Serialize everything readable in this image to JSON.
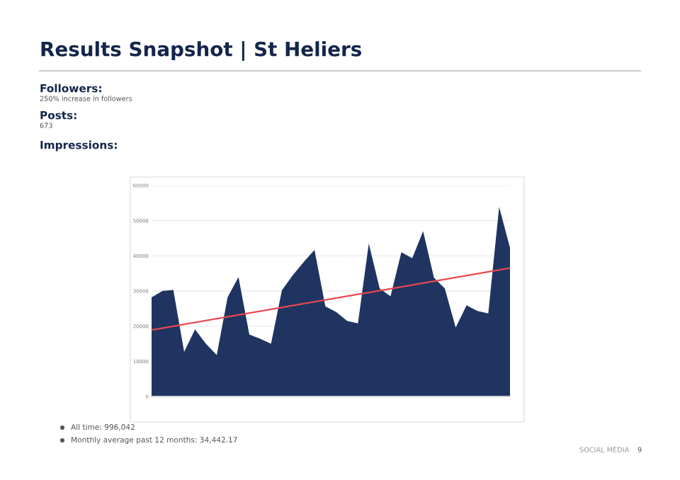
{
  "chart_data": {
    "type": "area",
    "title": "Results Snapshot | St Heliers",
    "annotations": [
      "Followers:",
      "250% increase in followers",
      "Posts:",
      "673",
      "Impressions:",
      "All time: 996,042",
      "Monthly average past 12 months: 34,442.17",
      "SOCIAL MEDIA",
      "9"
    ],
    "categories": [
      null,
      null,
      null,
      null,
      null,
      null,
      null,
      null,
      null,
      null,
      null,
      null,
      null,
      null,
      null,
      null,
      null,
      null,
      null,
      null,
      null,
      null,
      null,
      null,
      null,
      null,
      null,
      null,
      null,
      null,
      null,
      null,
      null,
      null
    ],
    "series": [
      {
        "color": "#1f3461",
        "values": [
          28200,
          30000,
          30300,
          12700,
          19100,
          15000,
          11800,
          28200,
          34000,
          17600,
          16400,
          15000,
          30200,
          34500,
          38200,
          41700,
          25600,
          24000,
          21500,
          20800,
          43500,
          30700,
          28500,
          41000,
          39300,
          47000,
          33800,
          30700,
          19600,
          25900,
          24300,
          23600,
          53900,
          42300
        ]
      },
      {
        "type": "line",
        "color": "#e8474f",
        "values": [
          18900,
          null,
          null,
          null,
          null,
          null,
          null,
          null,
          null,
          null,
          null,
          null,
          null,
          null,
          null,
          null,
          null,
          null,
          null,
          null,
          null,
          null,
          null,
          null,
          null,
          null,
          null,
          null,
          null,
          null,
          null,
          null,
          null,
          36500
        ]
      }
    ],
    "ylim": [
      0,
      60000
    ],
    "yticks": [
      0,
      10000,
      20000,
      30000,
      40000,
      50000,
      60000
    ],
    "grid": "y",
    "legend": false
  }
}
